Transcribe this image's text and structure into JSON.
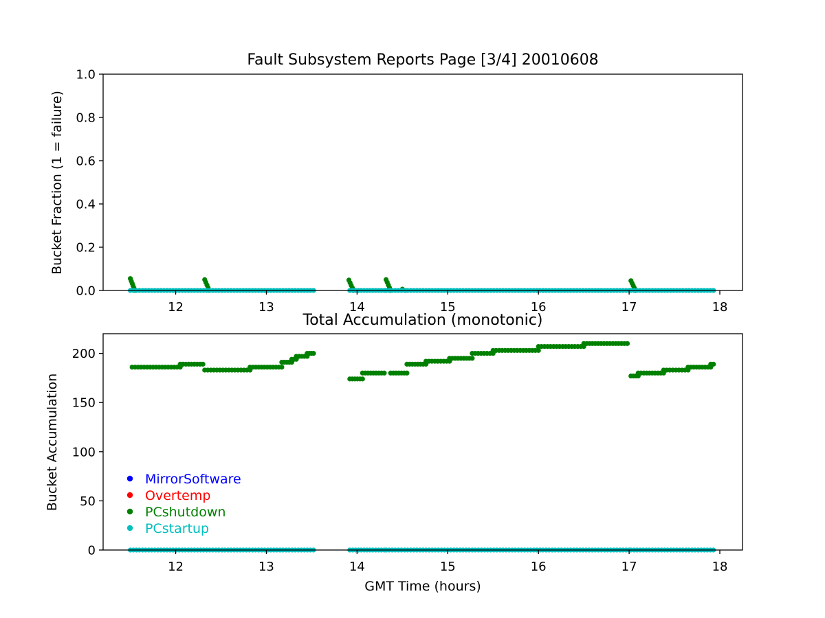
{
  "chart_data": [
    {
      "type": "scatter",
      "title": "Fault Subsystem Reports Page [3/4] 20010608",
      "xlabel": "",
      "ylabel": "Bucket Fraction (1 = failure)",
      "xlim": [
        11.2,
        18.25
      ],
      "ylim": [
        0,
        1
      ],
      "xticks": [
        12,
        13,
        14,
        15,
        16,
        17,
        18
      ],
      "yticks": [
        "0.0",
        "0.2",
        "0.4",
        "0.6",
        "0.8",
        "1.0"
      ],
      "grid": false,
      "series": [
        {
          "color": "#0000ff",
          "marker": "dot",
          "segments": []
        },
        {
          "color": "#ff0000",
          "marker": "dot",
          "segments": []
        },
        {
          "color": "#008000",
          "marker": "dot",
          "segments": [
            {
              "x0": 11.5,
              "x1": 11.55,
              "y0": 0.055,
              "y1": 0
            },
            {
              "x0": 12.32,
              "x1": 12.37,
              "y0": 0.05,
              "y1": 0
            },
            {
              "x0": 13.91,
              "x1": 13.96,
              "y0": 0.048,
              "y1": 0
            },
            {
              "x0": 14.32,
              "x1": 14.37,
              "y0": 0.05,
              "y1": 0
            },
            {
              "x0": 14.5,
              "x1": 14.53,
              "y0": 0.006,
              "y1": 0
            },
            {
              "x0": 17.02,
              "x1": 17.07,
              "y0": 0.045,
              "y1": 0
            }
          ]
        },
        {
          "color": "#00bfbf",
          "marker": "dot",
          "segments": [
            {
              "x0": 11.5,
              "x1": 13.52,
              "y0": 0,
              "y1": 0
            },
            {
              "x0": 13.92,
              "x1": 14.3,
              "y0": 0,
              "y1": 0
            },
            {
              "x0": 14.32,
              "x1": 17.0,
              "y0": 0,
              "y1": 0
            },
            {
              "x0": 17.02,
              "x1": 17.93,
              "y0": 0,
              "y1": 0
            }
          ]
        }
      ]
    },
    {
      "type": "scatter",
      "title": "Total Accumulation (monotonic)",
      "xlabel": "GMT Time (hours)",
      "ylabel": "Bucket Accumulation",
      "xlim": [
        11.2,
        18.25
      ],
      "ylim": [
        0,
        220
      ],
      "xticks": [
        12,
        13,
        14,
        15,
        16,
        17,
        18
      ],
      "yticks": [
        "0",
        "50",
        "100",
        "150",
        "200"
      ],
      "grid": false,
      "legend_position": "lower-left",
      "legend": [
        {
          "label": "MirrorSoftware",
          "color": "#0000ff"
        },
        {
          "label": "Overtemp",
          "color": "#ff0000"
        },
        {
          "label": "PCshutdown",
          "color": "#008000"
        },
        {
          "label": "PCstartup",
          "color": "#00bfbf"
        }
      ],
      "series": [
        {
          "color": "#0000ff",
          "marker": "dot",
          "segments": []
        },
        {
          "color": "#ff0000",
          "marker": "dot",
          "segments": []
        },
        {
          "color": "#008000",
          "marker": "dot",
          "segments": [
            {
              "x0": 11.52,
              "x1": 12.05,
              "y0": 186,
              "y1": 186
            },
            {
              "x0": 12.05,
              "x1": 12.3,
              "y0": 189,
              "y1": 189
            },
            {
              "x0": 12.32,
              "x1": 12.82,
              "y0": 183,
              "y1": 183
            },
            {
              "x0": 12.82,
              "x1": 13.17,
              "y0": 186,
              "y1": 186
            },
            {
              "x0": 13.17,
              "x1": 13.28,
              "y0": 191,
              "y1": 191
            },
            {
              "x0": 13.28,
              "x1": 13.33,
              "y0": 194,
              "y1": 194
            },
            {
              "x0": 13.33,
              "x1": 13.45,
              "y0": 197,
              "y1": 197
            },
            {
              "x0": 13.45,
              "x1": 13.52,
              "y0": 200,
              "y1": 200
            },
            {
              "x0": 13.92,
              "x1": 14.06,
              "y0": 174,
              "y1": 174
            },
            {
              "x0": 14.06,
              "x1": 14.3,
              "y0": 180,
              "y1": 180
            },
            {
              "x0": 14.37,
              "x1": 14.55,
              "y0": 180,
              "y1": 180
            },
            {
              "x0": 14.55,
              "x1": 14.76,
              "y0": 189,
              "y1": 189
            },
            {
              "x0": 14.76,
              "x1": 15.02,
              "y0": 192,
              "y1": 192
            },
            {
              "x0": 15.02,
              "x1": 15.27,
              "y0": 195,
              "y1": 195
            },
            {
              "x0": 15.27,
              "x1": 15.5,
              "y0": 200,
              "y1": 200
            },
            {
              "x0": 15.5,
              "x1": 16.0,
              "y0": 203,
              "y1": 203
            },
            {
              "x0": 16.0,
              "x1": 16.5,
              "y0": 207,
              "y1": 207
            },
            {
              "x0": 16.5,
              "x1": 16.98,
              "y0": 210,
              "y1": 210
            },
            {
              "x0": 17.02,
              "x1": 17.1,
              "y0": 177,
              "y1": 177
            },
            {
              "x0": 17.1,
              "x1": 17.38,
              "y0": 180,
              "y1": 180
            },
            {
              "x0": 17.38,
              "x1": 17.65,
              "y0": 183,
              "y1": 183
            },
            {
              "x0": 17.65,
              "x1": 17.9,
              "y0": 186,
              "y1": 186
            },
            {
              "x0": 17.9,
              "x1": 17.93,
              "y0": 189,
              "y1": 189
            }
          ]
        },
        {
          "color": "#00bfbf",
          "marker": "dot",
          "segments": [
            {
              "x0": 11.5,
              "x1": 13.52,
              "y0": 0,
              "y1": 0
            },
            {
              "x0": 13.92,
              "x1": 14.3,
              "y0": 0,
              "y1": 0
            },
            {
              "x0": 14.32,
              "x1": 17.0,
              "y0": 0,
              "y1": 0
            },
            {
              "x0": 17.02,
              "x1": 17.93,
              "y0": 0,
              "y1": 0
            }
          ]
        }
      ]
    }
  ]
}
